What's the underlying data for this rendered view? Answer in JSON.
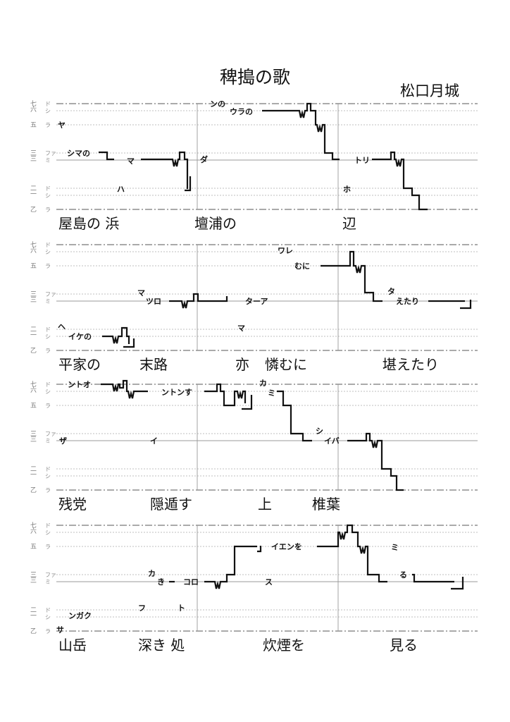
{
  "title": "稗搗の歌",
  "author": "松口月城",
  "scale": {
    "numerals": [
      "七",
      "六",
      "五",
      "三",
      "三",
      "二",
      "一",
      "乙"
    ],
    "solfege": [
      "ド",
      "シ",
      "ラ",
      "ファ",
      "ミ",
      "ド",
      "シ",
      "ラ"
    ]
  },
  "systems": [
    {
      "annotations": [
        "ヤ",
        "シマの",
        "マ",
        "ハ",
        "ダ",
        "ンの",
        "ウラの",
        "トリ",
        "ホ"
      ],
      "lyrics": [
        "屋島の 浜",
        "壇浦の",
        "辺"
      ]
    },
    {
      "annotations": [
        "ヘ",
        "イケの",
        "マ",
        "ツロ",
        "ターア",
        "マ",
        "ワレ",
        "むに",
        "タ",
        "えたり"
      ],
      "lyrics": [
        "平家の",
        "末路",
        "亦",
        "憐むに",
        "堪えたり"
      ]
    },
    {
      "annotations": [
        "ントオ",
        "ントンす",
        "カ",
        "ミ",
        "シ",
        "イバ",
        "ザ",
        "イ"
      ],
      "lyrics": [
        "残党",
        "隠遁す",
        "上",
        "椎葉"
      ]
    },
    {
      "annotations": [
        "サ",
        "ンガク",
        "フ",
        "ト",
        "カ",
        "き",
        "コロ",
        "ス",
        "イエンを",
        "ミ",
        "る"
      ],
      "lyrics": [
        "山岳",
        "深き 処",
        "炊煙を",
        "見る"
      ]
    }
  ]
}
